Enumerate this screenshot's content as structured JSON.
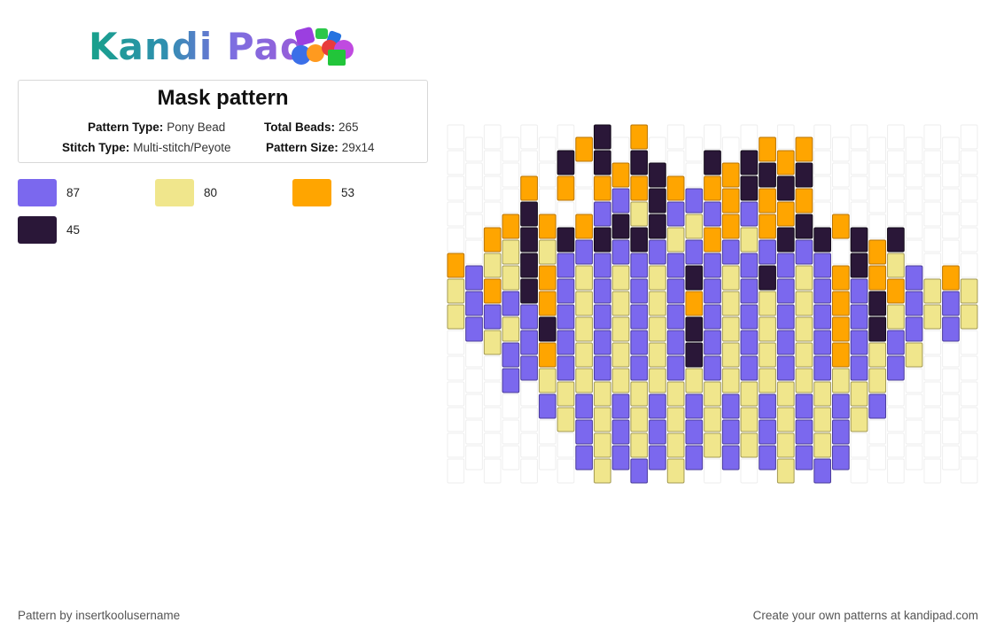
{
  "logo": {
    "text": "Kandi Pad"
  },
  "info": {
    "title": "Mask pattern",
    "pattern_type_label": "Pattern Type:",
    "pattern_type": "Pony Bead",
    "total_beads_label": "Total Beads:",
    "total_beads": "265",
    "stitch_type_label": "Stitch Type:",
    "stitch_type": "Multi-stitch/Peyote",
    "pattern_size_label": "Pattern Size:",
    "pattern_size": "29x14"
  },
  "legend": [
    {
      "color": "#7b68ee",
      "count": "87"
    },
    {
      "color": "#f0e68c",
      "count": "80"
    },
    {
      "color": "#ffa500",
      "count": "53"
    },
    {
      "color": "#2a1738",
      "count": "45"
    }
  ],
  "footer": {
    "left": "Pattern by insertkoolusername",
    "right": "Create your own patterns at kandipad.com"
  }
}
